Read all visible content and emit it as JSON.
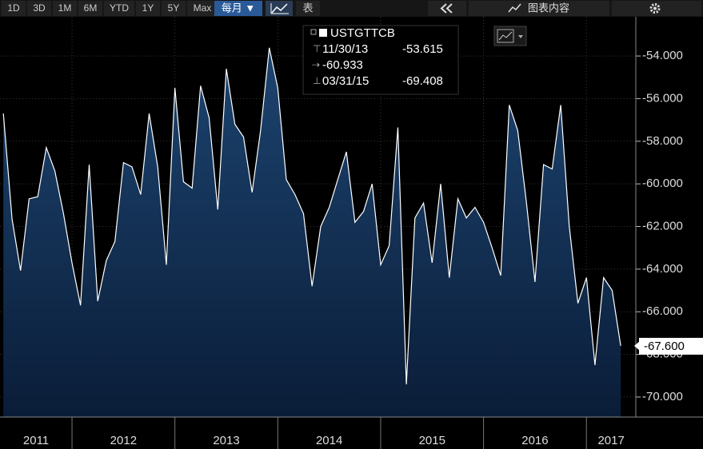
{
  "toolbar": {
    "ranges": [
      "1D",
      "3D",
      "1M",
      "6M",
      "YTD",
      "1Y",
      "5Y",
      "Max"
    ],
    "period": "每月 ▼",
    "table": "表",
    "chart_contents": "图表内容"
  },
  "chart_data": {
    "type": "area",
    "legend": {
      "name": "USTGTTCB",
      "high_date": "11/30/13",
      "high": -53.615,
      "average": -60.933,
      "low_date": "03/31/15",
      "low": -69.408
    },
    "last_value_label": "-67.600",
    "x_labels": [
      "2011",
      "2012",
      "2013",
      "2014",
      "2015",
      "2016",
      "2017"
    ],
    "xlim": [
      2011.3,
      2017.48
    ],
    "xticks": [
      2012,
      2013,
      2014,
      2015,
      2016,
      2017
    ],
    "ylim": [
      -70.94,
      -52.16
    ],
    "yticks": [
      {
        "value": -70,
        "label": "-70.000"
      },
      {
        "value": -68,
        "label": "-68.000"
      },
      {
        "value": -66,
        "label": "-66.000"
      },
      {
        "value": -64,
        "label": "-64.000"
      },
      {
        "value": -62,
        "label": "-62.000"
      },
      {
        "value": -60,
        "label": "-60.000"
      },
      {
        "value": -58,
        "label": "-58.000"
      },
      {
        "value": -56,
        "label": "-56.000"
      },
      {
        "value": -54,
        "label": "-54.000"
      }
    ],
    "grid": true,
    "x": [
      2011.333,
      2011.417,
      2011.5,
      2011.583,
      2011.667,
      2011.75,
      2011.833,
      2011.917,
      2012,
      2012.083,
      2012.167,
      2012.25,
      2012.333,
      2012.417,
      2012.5,
      2012.583,
      2012.667,
      2012.75,
      2012.833,
      2012.917,
      2013,
      2013.083,
      2013.167,
      2013.25,
      2013.333,
      2013.417,
      2013.5,
      2013.583,
      2013.667,
      2013.75,
      2013.833,
      2013.917,
      2014,
      2014.083,
      2014.167,
      2014.25,
      2014.333,
      2014.417,
      2014.5,
      2014.583,
      2014.667,
      2014.75,
      2014.833,
      2014.917,
      2015,
      2015.083,
      2015.167,
      2015.25,
      2015.333,
      2015.417,
      2015.5,
      2015.583,
      2015.667,
      2015.75,
      2015.833,
      2015.917,
      2016,
      2016.083,
      2016.167,
      2016.25,
      2016.333,
      2016.417,
      2016.5,
      2016.583,
      2016.667,
      2016.75,
      2016.833,
      2016.917,
      2017,
      2017.083,
      2017.167,
      2017.25,
      2017.333
    ],
    "series": [
      {
        "name": "USTGTTCB",
        "color": "#ffffff",
        "values": [
          -56.7,
          -61.66,
          -64.07,
          -60.7,
          -60.6,
          -58.3,
          -59.4,
          -61.4,
          -63.7,
          -65.7,
          -59.1,
          -65.5,
          -63.6,
          -62.7,
          -59.0,
          -59.2,
          -60.5,
          -56.7,
          -59.2,
          -63.8,
          -55.5,
          -59.9,
          -60.2,
          -55.4,
          -56.9,
          -61.2,
          -54.6,
          -57.2,
          -57.8,
          -60.4,
          -57.5,
          -53.615,
          -55.5,
          -59.8,
          -60.5,
          -61.4,
          -64.8,
          -62.0,
          -61.1,
          -59.8,
          -58.5,
          -61.8,
          -61.3,
          -60.0,
          -63.8,
          -62.9,
          -57.35,
          -69.408,
          -61.6,
          -60.9,
          -63.7,
          -60.0,
          -64.4,
          -60.7,
          -61.6,
          -61.1,
          -61.8,
          -63.0,
          -64.3,
          -56.3,
          -57.5,
          -60.9,
          -64.6,
          -59.1,
          -59.3,
          -56.3,
          -62.0,
          -65.6,
          -64.4,
          -68.5,
          -64.4,
          -65.0,
          -67.6
        ]
      }
    ]
  }
}
